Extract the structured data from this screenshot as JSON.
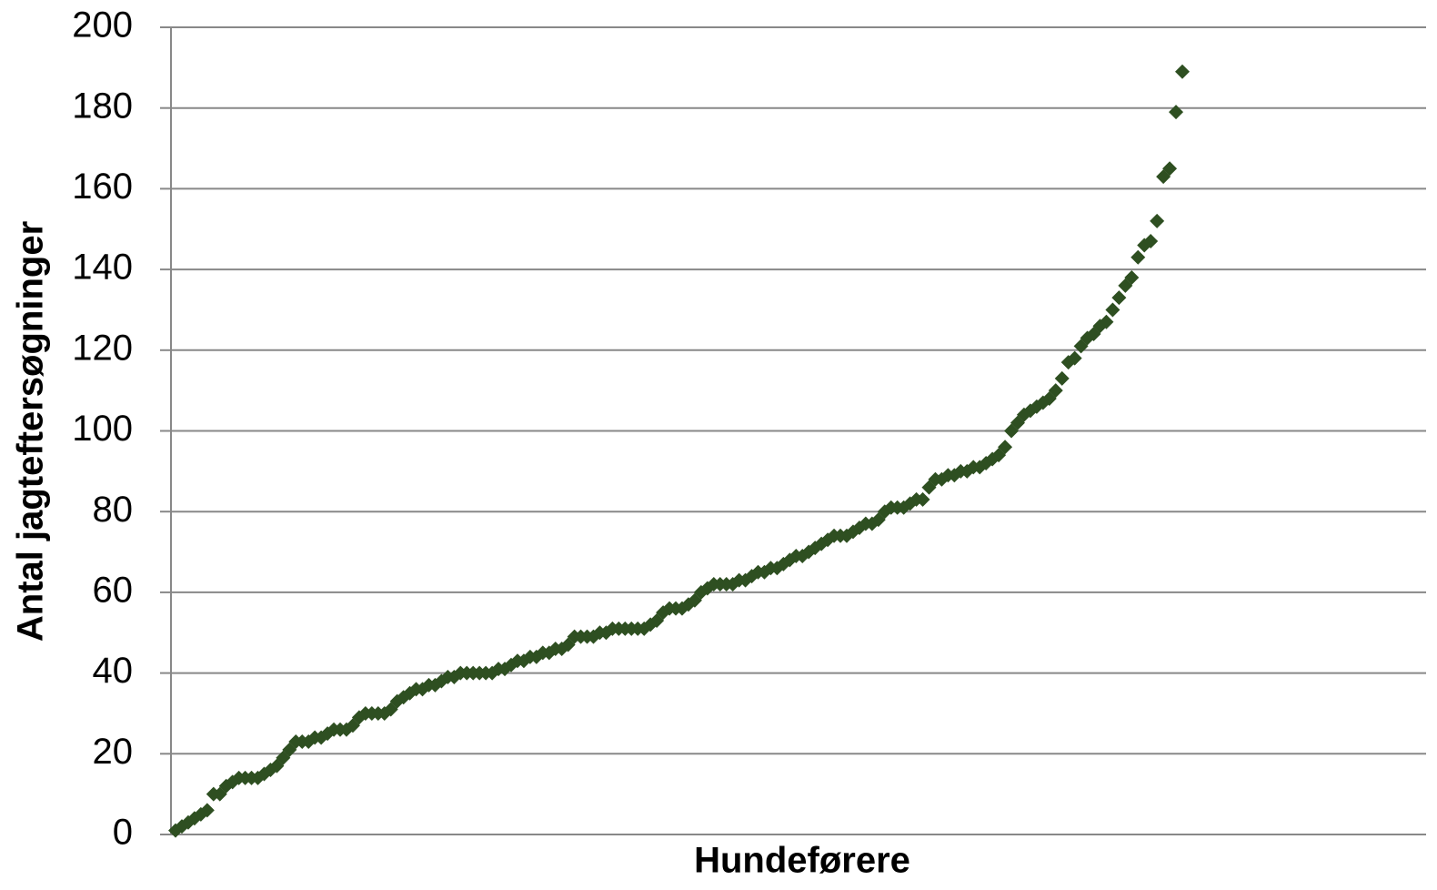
{
  "chart_data": {
    "type": "scatter",
    "ylabel": "Antal jagteftersøgninger",
    "xlabel": "Hundeførere",
    "color": "#2e4f21",
    "ylim": [
      0,
      200
    ],
    "yticks": [
      0,
      20,
      40,
      60,
      80,
      100,
      120,
      140,
      160,
      180,
      200
    ],
    "grid": true,
    "values": [
      1,
      2,
      3,
      4,
      5,
      6,
      10,
      10,
      12,
      13,
      14,
      14,
      14,
      14,
      15,
      16,
      17,
      19,
      21,
      23,
      23,
      23,
      24,
      24,
      25,
      26,
      26,
      26,
      27,
      29,
      30,
      30,
      30,
      30,
      31,
      33,
      34,
      35,
      36,
      36,
      37,
      37,
      38,
      39,
      39,
      40,
      40,
      40,
      40,
      40,
      40,
      41,
      41,
      42,
      43,
      43,
      44,
      44,
      45,
      45,
      46,
      46,
      47,
      49,
      49,
      49,
      49,
      50,
      50,
      51,
      51,
      51,
      51,
      51,
      51,
      52,
      53,
      55,
      56,
      56,
      56,
      57,
      58,
      60,
      61,
      62,
      62,
      62,
      62,
      63,
      63,
      64,
      65,
      65,
      66,
      66,
      67,
      68,
      69,
      69,
      70,
      71,
      72,
      73,
      74,
      74,
      74,
      75,
      76,
      77,
      77,
      78,
      80,
      81,
      81,
      81,
      82,
      83,
      83,
      86,
      88,
      88,
      89,
      89,
      90,
      90,
      91,
      91,
      92,
      93,
      94,
      96,
      100,
      102,
      104,
      105,
      106,
      107,
      108,
      110,
      113,
      117,
      118,
      121,
      123,
      124,
      126,
      127,
      130,
      133,
      136,
      138,
      143,
      146,
      147,
      152,
      163,
      165,
      179,
      189
    ]
  }
}
